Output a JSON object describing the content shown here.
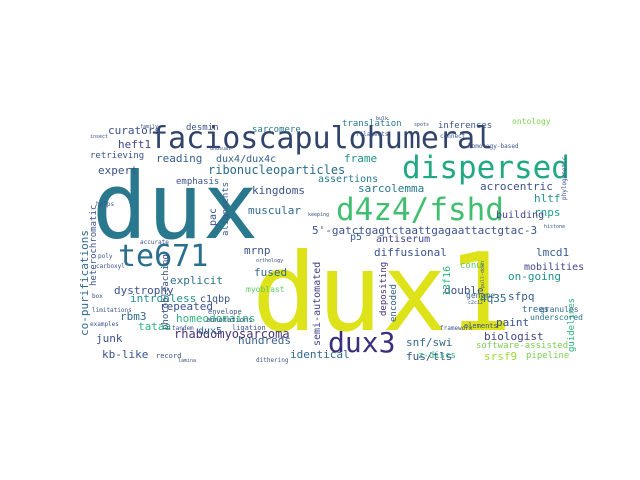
{
  "words": [
    {
      "text": "dux",
      "color": "#2a788e"
    },
    {
      "text": "dux1",
      "color": "#dde318"
    },
    {
      "text": "facioscapulohumeral",
      "color": "#31446b"
    },
    {
      "text": "dispersed",
      "color": "#22a884"
    },
    {
      "text": "d4z4/fshd",
      "color": "#42be71"
    },
    {
      "text": "te671",
      "color": "#2a6e8e"
    },
    {
      "text": "dux3",
      "color": "#3a2f7b"
    },
    {
      "text": "5'-gatctgagtctaattgagaattactgtac-3",
      "color": "#3b528b"
    },
    {
      "text": "ribonucleoparticles",
      "color": "#2c6c8e"
    },
    {
      "text": "homeodomains",
      "color": "#2fb47c"
    },
    {
      "text": "rhabdomyosarcoma",
      "color": "#46337e"
    },
    {
      "text": "co-purifications",
      "color": "#31688e"
    },
    {
      "text": "curators",
      "color": "#3b528b"
    },
    {
      "text": "heft1",
      "color": "#414487"
    },
    {
      "text": "expert",
      "color": "#3b528b"
    },
    {
      "text": "reading",
      "color": "#355f8d"
    },
    {
      "text": "frame",
      "color": "#21918c"
    },
    {
      "text": "assertions",
      "color": "#2a788e"
    },
    {
      "text": "kingdoms",
      "color": "#3b528b"
    },
    {
      "text": "muscular",
      "color": "#31688e"
    },
    {
      "text": "sarcolemma",
      "color": "#2a788e"
    },
    {
      "text": "acrocentric",
      "color": "#3b528b"
    },
    {
      "text": "hltf",
      "color": "#21918c"
    },
    {
      "text": "rnps",
      "color": "#1f9e89"
    },
    {
      "text": "building",
      "color": "#414487"
    },
    {
      "text": "lmcd1",
      "color": "#355f8d"
    },
    {
      "text": "dux4/dux4c",
      "color": "#355f8d"
    },
    {
      "text": "mrnp",
      "color": "#3b528b"
    },
    {
      "text": "fused",
      "color": "#31688e"
    },
    {
      "text": "myoblast",
      "color": "#5ec962"
    },
    {
      "text": "diffusional",
      "color": "#3b528b"
    },
    {
      "text": "p5",
      "color": "#355f8d"
    },
    {
      "text": "antiserum",
      "color": "#3e4989"
    },
    {
      "text": "explicit",
      "color": "#2d708e"
    },
    {
      "text": "dystrophy",
      "color": "#3b528b"
    },
    {
      "text": "intronless",
      "color": "#21918c"
    },
    {
      "text": "c1qbp",
      "color": "#3b528b"
    },
    {
      "text": "rbm3",
      "color": "#31688e"
    },
    {
      "text": "repeated",
      "color": "#3b528b"
    },
    {
      "text": "tataa",
      "color": "#2fb47c"
    },
    {
      "text": "dux5",
      "color": "#31688e"
    },
    {
      "text": "junk",
      "color": "#3b528b"
    },
    {
      "text": "kb-like",
      "color": "#3b528b"
    },
    {
      "text": "hundreds",
      "color": "#355f8d"
    },
    {
      "text": "identical",
      "color": "#31688e"
    },
    {
      "text": "semi-automated",
      "color": "#414487"
    },
    {
      "text": "snf/swi",
      "color": "#31688e"
    },
    {
      "text": "fus/tls",
      "color": "#3b528b"
    },
    {
      "text": "4q35",
      "color": "#31688e"
    },
    {
      "text": "on-going",
      "color": "#21918c"
    },
    {
      "text": "double",
      "color": "#3b528b"
    },
    {
      "text": "sfpq",
      "color": "#355f8d"
    },
    {
      "text": "paint",
      "color": "#3b528b"
    },
    {
      "text": "biologist",
      "color": "#414487"
    },
    {
      "text": "srsf9",
      "color": "#a0da39"
    },
    {
      "text": "pipeline",
      "color": "#7ad151"
    },
    {
      "text": "software-assisted",
      "color": "#7ad151"
    },
    {
      "text": "guidelines",
      "color": "#2fb47c"
    },
    {
      "text": "mobilities",
      "color": "#414487"
    },
    {
      "text": "depositing",
      "color": "#46337e"
    },
    {
      "text": "encoded",
      "color": "#355f8d"
    },
    {
      "text": "photobleaching",
      "color": "#3b528b"
    },
    {
      "text": "heterochromatic",
      "color": "#3b528b"
    },
    {
      "text": "alignments",
      "color": "#355f8d"
    },
    {
      "text": "pac",
      "color": "#3b528b"
    },
    {
      "text": "emphasis",
      "color": "#3b528b"
    },
    {
      "text": "retrieving",
      "color": "#3b528b"
    },
    {
      "text": "desmin",
      "color": "#3b528b"
    },
    {
      "text": "sarcomere",
      "color": "#2a788e"
    },
    {
      "text": "translation",
      "color": "#2a788e"
    },
    {
      "text": "inferences",
      "color": "#3b528b"
    },
    {
      "text": "ontology",
      "color": "#7fd34e"
    },
    {
      "text": "z-discs",
      "color": "#2fb47c"
    },
    {
      "text": "13f16",
      "color": "#2fb47c"
    },
    {
      "text": "conu",
      "color": "#5ec962"
    },
    {
      "text": "genome",
      "color": "#31688e"
    },
    {
      "text": "trees",
      "color": "#31688e"
    },
    {
      "text": "granules",
      "color": "#31688e"
    },
    {
      "text": "underscored",
      "color": "#2a788e"
    },
    {
      "text": "envelope",
      "color": "#3b528b"
    },
    {
      "text": "annotations",
      "color": "#3b528b"
    },
    {
      "text": "ligation",
      "color": "#3b528b"
    },
    {
      "text": "record",
      "color": "#3b528b"
    },
    {
      "text": "tandem",
      "color": "#3b528b"
    },
    {
      "text": "dithering",
      "color": "#3b528b"
    },
    {
      "text": "elements",
      "color": "#3b528b"
    },
    {
      "text": "framework",
      "color": "#3b528b"
    },
    {
      "text": "filaments",
      "color": "#3b528b"
    },
    {
      "text": "connect",
      "color": "#3b528b"
    },
    {
      "text": "homology-based",
      "color": "#3b528b"
    },
    {
      "text": "phylogenetic",
      "color": "#3b528b"
    },
    {
      "text": "accurate",
      "color": "#3b528b"
    },
    {
      "text": "carboxyl",
      "color": "#3b528b"
    },
    {
      "text": "poly",
      "color": "#3b528b"
    },
    {
      "text": "box",
      "color": "#3b528b"
    },
    {
      "text": "examples",
      "color": "#3b528b"
    },
    {
      "text": "limitations",
      "color": "#3b528b"
    },
    {
      "text": "insect",
      "color": "#3b528b"
    },
    {
      "text": "unusual",
      "color": "#3b528b"
    },
    {
      "text": "keeping",
      "color": "#3b528b"
    },
    {
      "text": "pull-down",
      "color": "#3b528b"
    },
    {
      "text": "orthology",
      "color": "#3b528b"
    },
    {
      "text": "c2c12",
      "color": "#3b528b"
    },
    {
      "text": "helps",
      "color": "#3b528b"
    },
    {
      "text": "family",
      "color": "#3b528b"
    },
    {
      "text": "spots",
      "color": "#3b528b"
    },
    {
      "text": "histone",
      "color": "#3b528b"
    },
    {
      "text": "lamina",
      "color": "#3b528b"
    },
    {
      "text": "bulk",
      "color": "#3b528b"
    }
  ]
}
